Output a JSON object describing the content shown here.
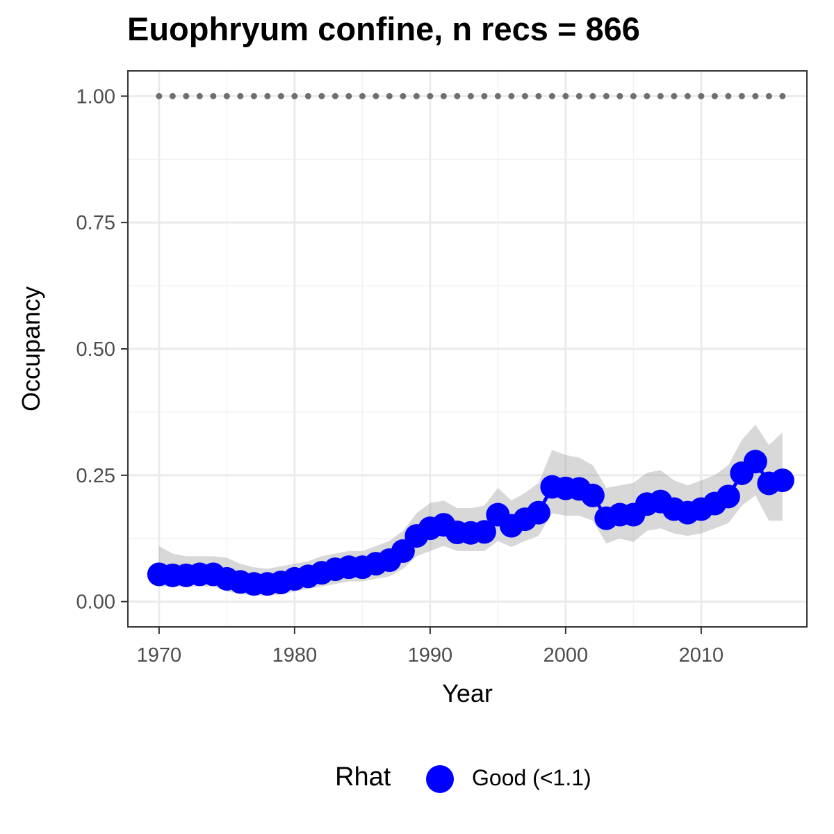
{
  "title": "Euophryum confine, n recs = 866",
  "chart_data": {
    "type": "line",
    "xlabel": "Year",
    "ylabel": "Occupancy",
    "xlim": [
      1967.7,
      2017.8
    ],
    "ylim": [
      -0.05,
      1.05
    ],
    "x_ticks": [
      1970,
      1980,
      1990,
      2000,
      2010
    ],
    "x_tick_labels": [
      "1970",
      "1980",
      "1990",
      "2000",
      "2010"
    ],
    "y_ticks": [
      0,
      0.25,
      0.5,
      0.75,
      1
    ],
    "y_tick_labels": [
      "0.00",
      "0.25",
      "0.50",
      "0.75",
      "1.00"
    ],
    "grid": true,
    "legend": {
      "title": "Rhat",
      "position": "bottom",
      "entries": [
        {
          "label": "Good (<1.1)",
          "color": "#0000ff"
        }
      ]
    },
    "series": [
      {
        "color": "#0000ff",
        "x": [
          1970,
          1971,
          1972,
          1973,
          1974,
          1975,
          1976,
          1977,
          1978,
          1979,
          1980,
          1981,
          1982,
          1983,
          1984,
          1985,
          1986,
          1987,
          1988,
          1989,
          1990,
          1991,
          1992,
          1993,
          1994,
          1995,
          1996,
          1997,
          1998,
          1999,
          2000,
          2001,
          2002,
          2003,
          2004,
          2005,
          2006,
          2007,
          2008,
          2009,
          2010,
          2011,
          2012,
          2013,
          2014,
          2015,
          2016
        ],
        "y": [
          0.054,
          0.052,
          0.052,
          0.054,
          0.054,
          0.045,
          0.039,
          0.035,
          0.035,
          0.038,
          0.045,
          0.05,
          0.057,
          0.064,
          0.068,
          0.068,
          0.075,
          0.082,
          0.1,
          0.13,
          0.145,
          0.152,
          0.137,
          0.136,
          0.138,
          0.172,
          0.15,
          0.163,
          0.176,
          0.227,
          0.224,
          0.223,
          0.21,
          0.165,
          0.172,
          0.172,
          0.193,
          0.198,
          0.183,
          0.176,
          0.183,
          0.194,
          0.208,
          0.254,
          0.277,
          0.234,
          0.24
        ],
        "lower": [
          0.03,
          0.03,
          0.03,
          0.03,
          0.03,
          0.02,
          0.015,
          0.012,
          0.012,
          0.014,
          0.02,
          0.025,
          0.03,
          0.035,
          0.04,
          0.04,
          0.045,
          0.05,
          0.065,
          0.09,
          0.1,
          0.11,
          0.1,
          0.1,
          0.1,
          0.12,
          0.108,
          0.12,
          0.13,
          0.175,
          0.17,
          0.17,
          0.16,
          0.115,
          0.125,
          0.118,
          0.14,
          0.145,
          0.135,
          0.13,
          0.135,
          0.145,
          0.155,
          0.19,
          0.21,
          0.16,
          0.16
        ],
        "upper": [
          0.11,
          0.095,
          0.09,
          0.09,
          0.09,
          0.087,
          0.075,
          0.068,
          0.065,
          0.07,
          0.075,
          0.08,
          0.09,
          0.095,
          0.1,
          0.1,
          0.11,
          0.12,
          0.14,
          0.175,
          0.195,
          0.2,
          0.185,
          0.185,
          0.19,
          0.225,
          0.2,
          0.215,
          0.235,
          0.3,
          0.29,
          0.285,
          0.27,
          0.225,
          0.23,
          0.235,
          0.255,
          0.26,
          0.24,
          0.23,
          0.24,
          0.25,
          0.27,
          0.32,
          0.35,
          0.31,
          0.335
        ]
      }
    ],
    "reference_points": {
      "color": "#6f6f6f",
      "y": 1.0,
      "x_start": 1970,
      "x_end": 2016,
      "step": 1
    }
  }
}
